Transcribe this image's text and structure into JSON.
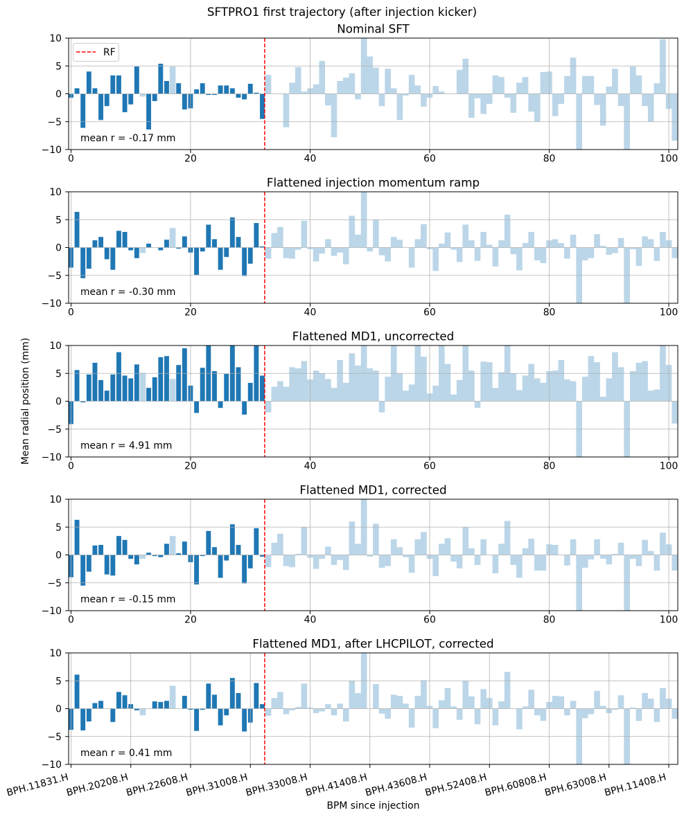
{
  "figure": {
    "suptitle": "SFTPRO1 first trajectory (after injection kicker)",
    "ylabel": "Mean radial position (mm)",
    "xlabel": "BPM since injection",
    "colors": {
      "bar": "#1f77b4",
      "faded_alpha": 0.3,
      "rf_line": "#ff0000",
      "grid": "#b0b0b0",
      "spine": "#000000"
    },
    "faded_bpm_indices": [
      12,
      17
    ],
    "faded_rule": "BPMs after the RF marker and listed faded indices are drawn faded; mean r is computed over the solid bars"
  },
  "chart_data": [
    {
      "type": "bar",
      "title": "Nominal SFT",
      "xlabel": "",
      "ylabel": "Mean radial position (mm)",
      "x_start": 0,
      "xlim": [
        -0.4,
        101.5
      ],
      "ylim": [
        -10,
        10
      ],
      "xticks": [
        0,
        20,
        40,
        60,
        80,
        100
      ],
      "xtick_labels": [
        "0",
        "20",
        "40",
        "60",
        "80",
        "100"
      ],
      "yticks": [
        -10,
        -5,
        0,
        5,
        10
      ],
      "ytick_labels": [
        "−10",
        "−5",
        "0",
        "5",
        "10"
      ],
      "grid": true,
      "rf_marker": {
        "label": "RF",
        "x": 32.4,
        "style": "dashed"
      },
      "legend": {
        "entries": [
          "RF"
        ],
        "placement": "top-left"
      },
      "annotation": "mean r = -0.17 mm",
      "mean_r_mm": -0.17,
      "values": [
        -0.7,
        1.0,
        -6.1,
        4.0,
        1.0,
        -4.7,
        -2.2,
        3.3,
        3.3,
        -3.3,
        -1.9,
        4.9,
        -0.5,
        -6.4,
        -1.3,
        5.4,
        2.3,
        4.9,
        1.9,
        -2.8,
        -2.6,
        0.8,
        1.9,
        -0.2,
        -0.2,
        1.5,
        1.5,
        1.0,
        -0.7,
        -1.0,
        1.8,
        0.2,
        -4.5,
        3.4,
        0.0,
        0.0,
        -6.0,
        2.0,
        4.8,
        0.4,
        1.0,
        1.7,
        5.9,
        -2.1,
        -7.8,
        2.3,
        2.9,
        3.7,
        -1.0,
        10.5,
        6.7,
        4.7,
        -2.2,
        4.5,
        1.0,
        -4.7,
        -0.3,
        3.4,
        1.5,
        -2.3,
        -0.7,
        1.4,
        0.4,
        0.0,
        0.0,
        4.3,
        6.3,
        -4.3,
        -0.8,
        -3.6,
        -1.8,
        3.3,
        3.0,
        -0.7,
        -3.4,
        2.0,
        3.0,
        -3.2,
        -5.0,
        3.9,
        4.0,
        -4.0,
        -1.8,
        3.2,
        6.5,
        -10.5,
        3.2,
        3.2,
        -2.0,
        -5.7,
        1.3,
        4.5,
        -2.2,
        -10.5,
        4.9,
        3.3,
        -2.2,
        -5.0,
        1.9,
        9.8,
        -2.7,
        -8.4
      ]
    },
    {
      "type": "bar",
      "title": "Flattened injection momentum ramp",
      "xlabel": "",
      "ylabel": "Mean radial position (mm)",
      "x_start": 0,
      "xlim": [
        -0.4,
        101.5
      ],
      "ylim": [
        -10,
        10
      ],
      "xticks": [
        0,
        20,
        40,
        60,
        80,
        100
      ],
      "xtick_labels": [
        "0",
        "20",
        "40",
        "60",
        "80",
        "100"
      ],
      "yticks": [
        -10,
        -5,
        0,
        5,
        10
      ],
      "ytick_labels": [
        "−10",
        "−5",
        "0",
        "5",
        "10"
      ],
      "grid": true,
      "rf_marker": {
        "label": "RF",
        "x": 32.4,
        "style": "dashed"
      },
      "annotation": "mean r = -0.30 mm",
      "mean_r_mm": -0.3,
      "values": [
        -3.6,
        6.4,
        -5.5,
        -3.8,
        1.3,
        1.9,
        -2.1,
        -4.0,
        3.0,
        2.8,
        -0.5,
        -1.9,
        -1.0,
        0.7,
        0.0,
        -0.5,
        1.4,
        3.5,
        -0.2,
        2.0,
        -0.9,
        -4.9,
        -0.7,
        4.1,
        1.5,
        -4.0,
        -1.7,
        5.4,
        1.9,
        -5.1,
        -2.9,
        4.4,
        0.2,
        -2.0,
        2.6,
        3.7,
        -1.9,
        -2.0,
        -0.4,
        4.8,
        -0.3,
        -2.5,
        -1.1,
        1.5,
        -1.5,
        -0.9,
        -3.0,
        5.7,
        2.3,
        10.5,
        -0.7,
        5.0,
        -1.4,
        -2.5,
        1.9,
        1.4,
        0.0,
        -3.6,
        1.5,
        4.2,
        -0.3,
        -4.2,
        0.7,
        2.7,
        -0.4,
        -2.6,
        4.1,
        1.3,
        -2.4,
        2.8,
        0.5,
        -3.4,
        1.3,
        5.9,
        -1.2,
        -4.1,
        0.8,
        2.8,
        -2.3,
        -2.8,
        1.3,
        1.5,
        0.8,
        -2.0,
        2.3,
        -10.5,
        -2.3,
        -1.9,
        2.4,
        0.3,
        -1.3,
        -1.0,
        1.7,
        -10.5,
        -0.3,
        -3.3,
        2.0,
        1.5,
        -2.4,
        2.8,
        1.3,
        -1.9
      ]
    },
    {
      "type": "bar",
      "title": "Flattened MD1, uncorrected",
      "xlabel": "",
      "ylabel": "Mean radial position (mm)",
      "x_start": 0,
      "xlim": [
        -0.4,
        101.5
      ],
      "ylim": [
        -10,
        10
      ],
      "xticks": [
        0,
        20,
        40,
        60,
        80,
        100
      ],
      "xtick_labels": [
        "0",
        "20",
        "40",
        "60",
        "80",
        "100"
      ],
      "yticks": [
        -10,
        -5,
        0,
        5,
        10
      ],
      "ytick_labels": [
        "−10",
        "−5",
        "0",
        "5",
        "10"
      ],
      "grid": true,
      "rf_marker": {
        "label": "RF",
        "x": 32.4,
        "style": "dashed"
      },
      "annotation": "mean r = 4.91 mm",
      "mean_r_mm": 4.91,
      "values": [
        -4.1,
        5.6,
        -0.2,
        4.8,
        6.9,
        3.8,
        1.9,
        4.8,
        8.8,
        4.6,
        4.1,
        6.6,
        5.1,
        2.4,
        4.3,
        7.9,
        8.1,
        4.0,
        6.5,
        9.5,
        2.8,
        -2.1,
        6.0,
        12.8,
        5.4,
        -1.2,
        4.9,
        12.8,
        6.1,
        -2.4,
        3.3,
        12.8,
        4.6,
        -2.0,
        2.6,
        3.6,
        2.6,
        6.1,
        5.9,
        7.2,
        3.9,
        5.5,
        5.0,
        4.0,
        2.4,
        7.4,
        3.3,
        8.6,
        6.4,
        10.5,
        5.9,
        5.5,
        -2.0,
        4.4,
        10.5,
        5.0,
        1.9,
        3.0,
        10.5,
        8.0,
        1.4,
        2.8,
        10.5,
        6.7,
        1.2,
        3.8,
        10.5,
        5.5,
        -1.2,
        7.1,
        7.0,
        2.4,
        5.2,
        10.5,
        5.0,
        2.0,
        4.6,
        6.7,
        4.1,
        3.3,
        5.4,
        5.5,
        7.4,
        3.9,
        3.6,
        -10.5,
        4.4,
        8.1,
        7.0,
        0.8,
        4.1,
        8.8,
        6.1,
        -10.5,
        5.4,
        6.9,
        7.2,
        1.9,
        2.1,
        10.5,
        6.5,
        -4.0
      ]
    },
    {
      "type": "bar",
      "title": "Flattened MD1, corrected",
      "xlabel": "",
      "ylabel": "Mean radial position (mm)",
      "x_start": 0,
      "xlim": [
        -0.4,
        101.5
      ],
      "ylim": [
        -10,
        10
      ],
      "xticks": [
        0,
        20,
        40,
        60,
        80,
        100
      ],
      "xtick_labels": [
        "0",
        "20",
        "40",
        "60",
        "80",
        "100"
      ],
      "yticks": [
        -10,
        -5,
        0,
        5,
        10
      ],
      "ytick_labels": [
        "−10",
        "−5",
        "0",
        "5",
        "10"
      ],
      "grid": true,
      "rf_marker": {
        "label": "RF",
        "x": 32.4,
        "style": "dashed"
      },
      "annotation": "mean r = -0.15 mm",
      "mean_r_mm": -0.15,
      "values": [
        -4.0,
        6.3,
        -5.5,
        -3.0,
        1.7,
        1.8,
        -3.5,
        -3.7,
        3.4,
        2.7,
        -0.7,
        -1.7,
        -0.7,
        0.4,
        -0.2,
        -0.4,
        2.0,
        3.4,
        0.3,
        2.4,
        -1.3,
        -5.3,
        -0.2,
        4.3,
        1.4,
        -4.1,
        -1.0,
        5.5,
        1.8,
        -5.1,
        -2.4,
        4.8,
        -0.3,
        -2.2,
        2.2,
        3.8,
        -2.0,
        -2.2,
        0.2,
        5.0,
        -0.5,
        -2.5,
        -0.7,
        1.5,
        -1.8,
        -0.9,
        -2.7,
        6.0,
        2.0,
        10.5,
        -0.3,
        5.6,
        -2.3,
        -2.0,
        2.8,
        1.4,
        -0.4,
        -3.2,
        2.8,
        4.1,
        -0.7,
        -3.8,
        2.0,
        3.0,
        -1.2,
        -2.4,
        5.0,
        1.2,
        -1.8,
        2.8,
        0.0,
        -3.3,
        2.0,
        6.1,
        -1.8,
        -4.1,
        1.2,
        2.9,
        -2.8,
        -2.8,
        1.9,
        1.8,
        0.0,
        -1.9,
        2.8,
        -10.5,
        -2.3,
        -0.8,
        2.8,
        -0.7,
        -1.7,
        0.2,
        2.2,
        -10.5,
        -0.7,
        -2.0,
        2.7,
        0.7,
        -2.8,
        4.0,
        1.9,
        -2.8
      ]
    },
    {
      "type": "bar",
      "title": "Flattened MD1, after LHCPILOT, corrected",
      "xlabel": "BPM since injection",
      "ylabel": "Mean radial position (mm)",
      "x_start": 0,
      "xlim": [
        -0.4,
        101.5
      ],
      "ylim": [
        -10,
        10
      ],
      "xticks": [
        0,
        10,
        20,
        30,
        40,
        50,
        60,
        70,
        80,
        90,
        100
      ],
      "xtick_labels": [
        "BPH.11831.H",
        "BPH.20208.H",
        "BPH.22608.H",
        "BPH.31008.H",
        "BPH.33008.H",
        "BPH.41408.H",
        "BPH.43608.H",
        "BPH.52408.H",
        "BPH.60808.H",
        "BPH.63008.H",
        "BPH.11408.H"
      ],
      "yticks": [
        -10,
        -5,
        0,
        5,
        10
      ],
      "ytick_labels": [
        "−10",
        "−5",
        "0",
        "5",
        "10"
      ],
      "grid": true,
      "rf_marker": {
        "label": "RF",
        "x": 32.4,
        "style": "dashed"
      },
      "annotation": "mean r = 0.41 mm",
      "mean_r_mm": 0.41,
      "values": [
        -3.8,
        6.1,
        -3.9,
        -2.3,
        1.0,
        1.4,
        0.0,
        -2.4,
        3.0,
        2.4,
        0.8,
        -0.3,
        -1.2,
        0.0,
        1.3,
        1.2,
        1.4,
        4.1,
        0.0,
        2.3,
        -0.2,
        -4.0,
        -0.2,
        4.5,
        2.5,
        -3.0,
        -1.2,
        5.5,
        2.8,
        -4.1,
        -2.5,
        4.6,
        0.8,
        -1.3,
        1.9,
        3.0,
        -1.0,
        -0.3,
        0.3,
        4.5,
        0.2,
        -0.8,
        -0.5,
        0.8,
        -1.2,
        0.9,
        -2.3,
        5.0,
        2.8,
        10.5,
        0.0,
        4.4,
        -0.9,
        -1.8,
        2.5,
        2.3,
        0.9,
        -3.4,
        2.3,
        5.1,
        0.5,
        -3.5,
        1.5,
        3.7,
        0.4,
        -2.0,
        5.0,
        2.2,
        -2.8,
        3.5,
        1.9,
        -3.0,
        1.3,
        6.6,
        0.0,
        -3.7,
        0.4,
        3.4,
        -1.2,
        -2.2,
        1.2,
        2.3,
        2.2,
        -1.2,
        1.4,
        -10.5,
        -1.7,
        -1.0,
        3.2,
        0.5,
        -0.8,
        -0.2,
        2.4,
        -10.5,
        0.2,
        -2.2,
        2.8,
        1.8,
        -2.4,
        3.7,
        1.8,
        -1.8
      ]
    }
  ]
}
